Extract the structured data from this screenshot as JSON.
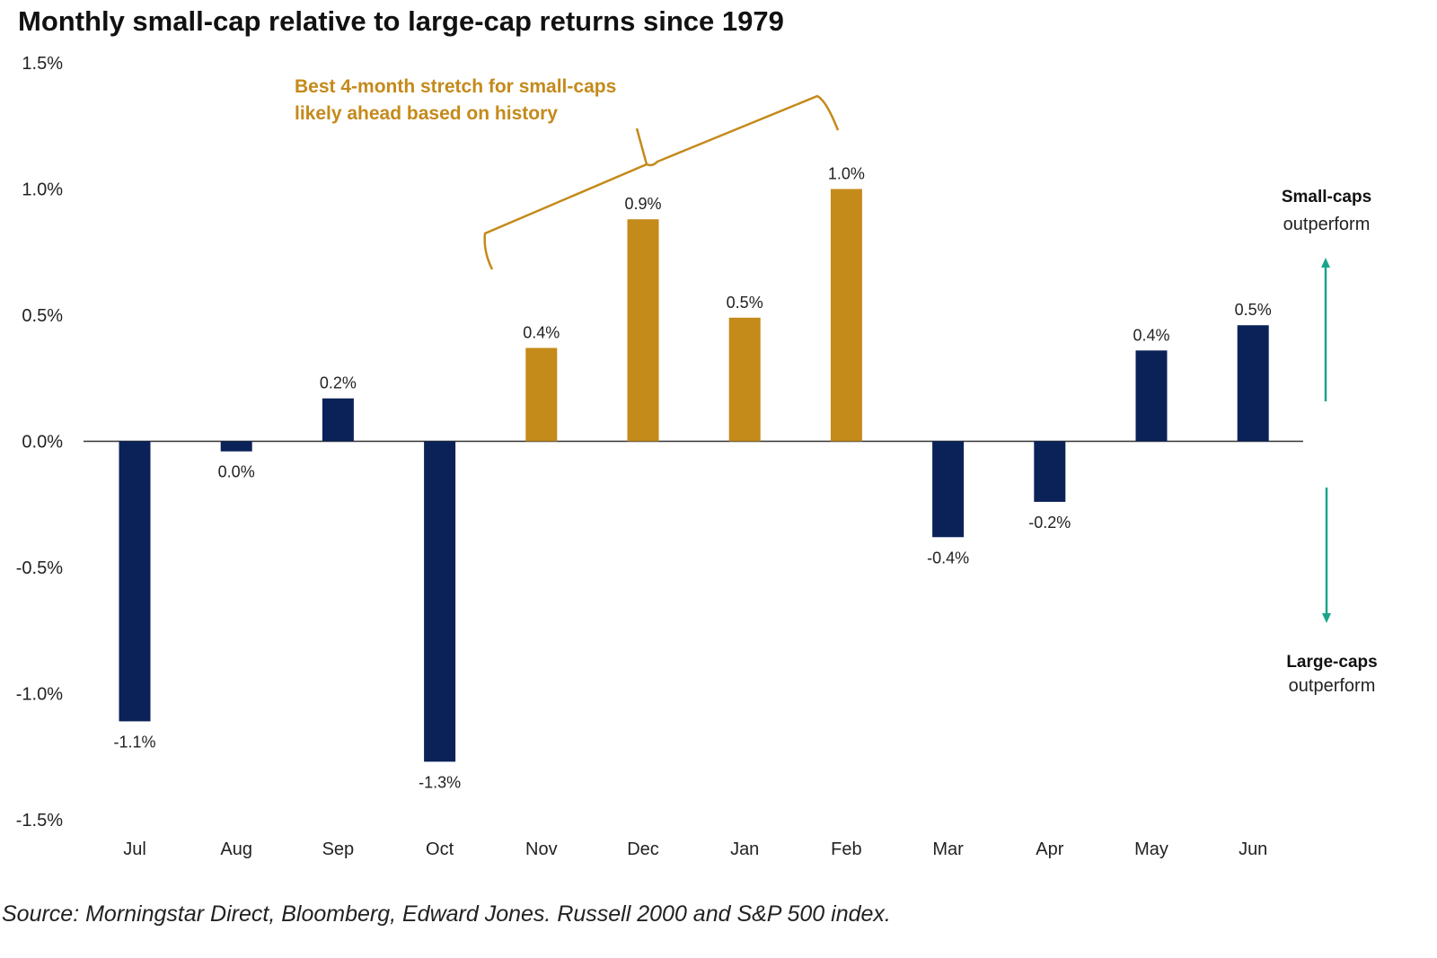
{
  "chart_data": {
    "type": "bar",
    "title": "Monthly small-cap relative to large-cap returns since 1979",
    "xlabel": "",
    "ylabel": "",
    "ylim": [
      -1.5,
      1.5
    ],
    "yticks": [
      "1.5%",
      "1.0%",
      "0.5%",
      "0.0%",
      "-0.5%",
      "-1.0%",
      "-1.5%"
    ],
    "ytick_values": [
      1.5,
      1.0,
      0.5,
      0.0,
      -0.5,
      -1.0,
      -1.5
    ],
    "grid": false,
    "categories": [
      "Jul",
      "Aug",
      "Sep",
      "Oct",
      "Nov",
      "Dec",
      "Jan",
      "Feb",
      "Mar",
      "Apr",
      "May",
      "Jun"
    ],
    "values": [
      -1.11,
      -0.04,
      0.17,
      -1.27,
      0.37,
      0.88,
      0.49,
      1.0,
      -0.38,
      -0.24,
      0.36,
      0.46
    ],
    "data_labels": [
      "-1.1%",
      "0.0%",
      "0.2%",
      "-1.3%",
      "0.4%",
      "0.9%",
      "0.5%",
      "1.0%",
      "-0.4%",
      "-0.2%",
      "0.4%",
      "0.5%"
    ],
    "highlighted": [
      false,
      false,
      false,
      false,
      true,
      true,
      true,
      true,
      false,
      false,
      false,
      false
    ],
    "colors": {
      "default": "#0b2259",
      "highlight": "#c48a1a",
      "arrow": "#1aa58a"
    },
    "annotation": [
      "Best 4-month  stretch  for small-caps",
      "likely ahead based on history"
    ],
    "side_labels": {
      "top_bold": "Small-caps",
      "top": "outperform",
      "bottom_bold": "Large-caps",
      "bottom": "outperform"
    },
    "source": "Source: Morningstar Direct, Bloomberg, Edward Jones. Russell 2000 and S&P 500 index."
  }
}
